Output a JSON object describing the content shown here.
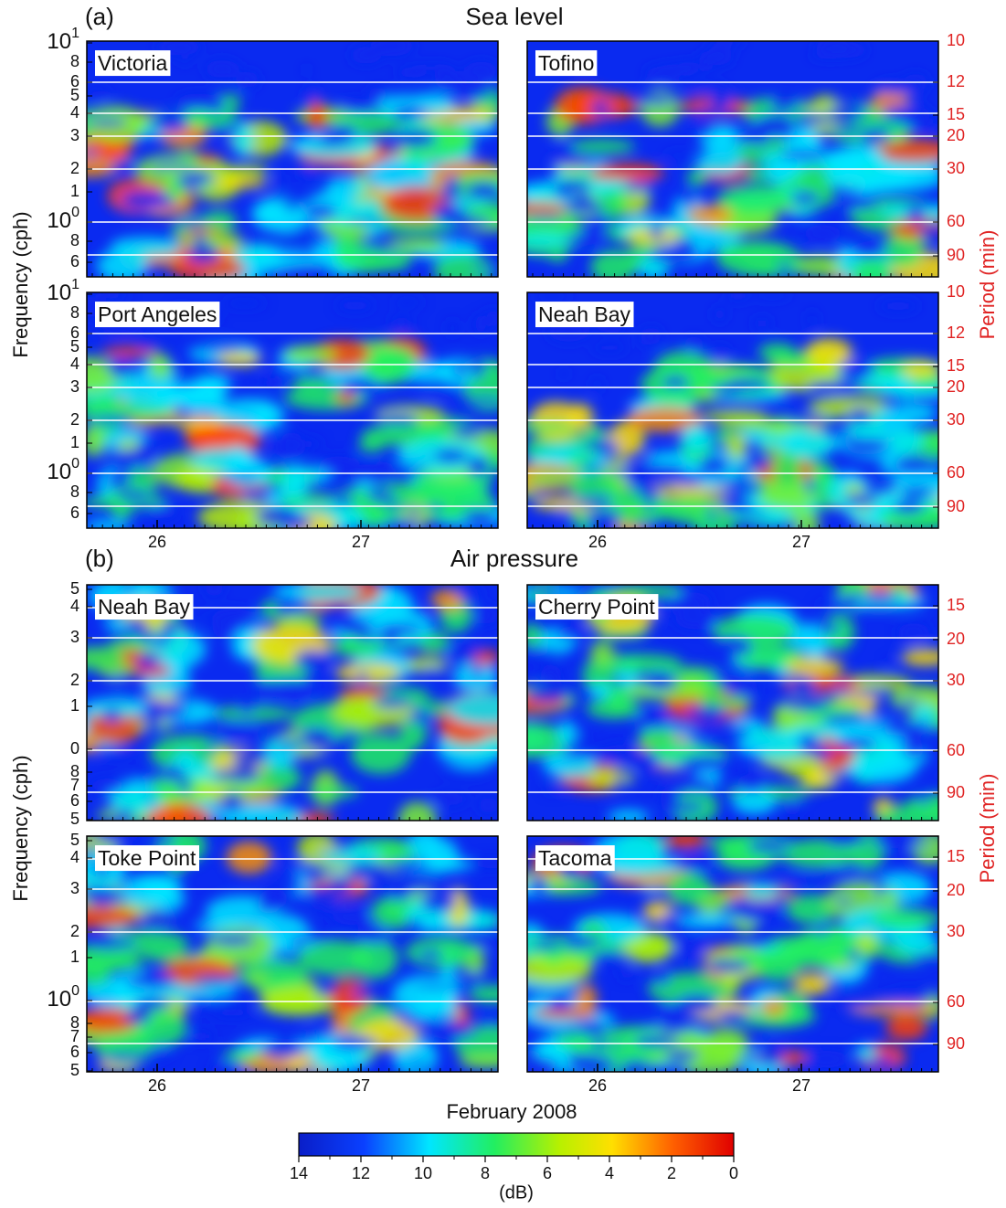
{
  "figure": {
    "groups": [
      {
        "label": "(a)",
        "title": "Sea level",
        "y_title": "Frequency (cph)",
        "y2_title": "Period  (min)",
        "rows": [
          {
            "panels": [
              "Victoria",
              "Tofino"
            ],
            "frequency_ticks": [
              {
                "label": "10",
                "sup": "1"
              },
              "8",
              "6",
              "5",
              "4",
              "3",
              "2",
              "1",
              {
                "label": "10",
                "sup": "0"
              },
              "8",
              "6"
            ]
          },
          {
            "panels": [
              "Port Angeles",
              "Neah Bay"
            ],
            "frequency_ticks": [
              {
                "label": "10",
                "sup": "1"
              },
              "8",
              "6",
              "5",
              "4",
              "3",
              "2",
              "1",
              {
                "label": "10",
                "sup": "0"
              },
              "8",
              "6"
            ]
          }
        ],
        "period_ticks": [
          "10",
          "12",
          "15",
          "20",
          "30",
          "60",
          "90"
        ],
        "x_ticks": [
          "26",
          "27"
        ]
      },
      {
        "label": "(b)",
        "title": "Air pressure",
        "y_title": "Frequency (cph)",
        "y2_title": "Period  (min)",
        "rows": [
          {
            "panels": [
              "Neah Bay",
              "Cherry Point"
            ],
            "frequency_ticks": [
              "5",
              "4",
              "3",
              "2",
              "1",
              "0",
              "8",
              "7",
              "6",
              "5"
            ]
          },
          {
            "panels": [
              "Toke Point",
              "Tacoma"
            ],
            "frequency_ticks": [
              "5",
              "4",
              "3",
              "2",
              "1",
              {
                "label": "10",
                "sup": "0"
              },
              "8",
              "7",
              "6",
              "5"
            ]
          }
        ],
        "period_ticks": [
          "15",
          "20",
          "30",
          "60",
          "90"
        ],
        "x_ticks": [
          "26",
          "27"
        ]
      }
    ],
    "x_title": "February 2008",
    "colorbar": {
      "lim": [
        14,
        0
      ],
      "ticks": [
        14,
        12,
        10,
        8,
        6,
        4,
        2,
        0
      ],
      "label": "(dB)"
    }
  }
}
